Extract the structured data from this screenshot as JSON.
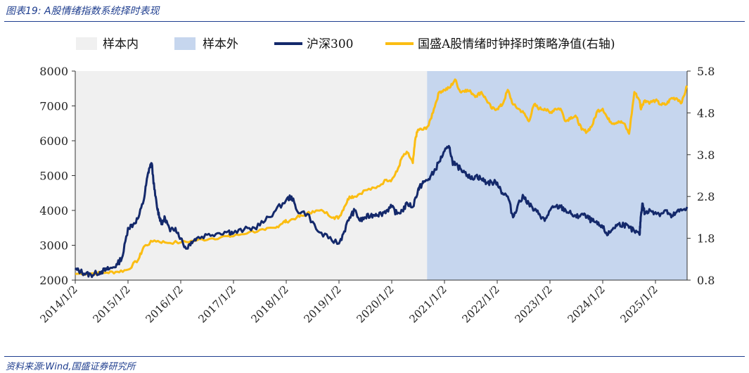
{
  "figure": {
    "title": "图表19:  A股情绪指数系统择时表现",
    "source": "资料来源:Wind,国盛证券研究所"
  },
  "colors": {
    "in_sample": "#f0f0f0",
    "out_sample": "#c6d6ee",
    "hs300": "#14296b",
    "strategy": "#fbbd13",
    "accent": "#1f3e8f"
  },
  "chart_data": {
    "type": "line",
    "title": "",
    "xlabel": "",
    "ylabel": "",
    "legend": [
      "样本内",
      "样本外",
      "沪深300",
      "国盛A股情绪时钟择时策略净值(右轴)"
    ],
    "legend_position": "top",
    "x_ticks": [
      "2014/1/2",
      "2015/1/2",
      "2016/1/2",
      "2017/1/2",
      "2018/1/2",
      "2019/1/2",
      "2020/1/2",
      "2021/1/2",
      "2022/1/2",
      "2023/1/2",
      "2024/1/2",
      "2025/1/2"
    ],
    "x_range": [
      2014.0,
      2025.6
    ],
    "ylim_left": [
      2000,
      8000
    ],
    "ylim_right": [
      0.8,
      5.8
    ],
    "y_ticks_left": [
      "2000",
      "3000",
      "4000",
      "5000",
      "6000",
      "7000",
      "8000"
    ],
    "y_ticks_right": [
      "0.8",
      "1.8",
      "2.8",
      "3.8",
      "4.8",
      "5.8"
    ],
    "shaded_regions": [
      {
        "name": "样本内",
        "from": 2014.0,
        "to": 2020.67
      },
      {
        "name": "样本外",
        "from": 2020.67,
        "to": 2025.6
      }
    ],
    "series": [
      {
        "name": "沪深300",
        "axis": "left",
        "x": [
          2014.0,
          2014.1,
          2014.2,
          2014.3,
          2014.4,
          2014.5,
          2014.6,
          2014.7,
          2014.8,
          2014.9,
          2015.0,
          2015.1,
          2015.2,
          2015.3,
          2015.35,
          2015.4,
          2015.45,
          2015.5,
          2015.55,
          2015.6,
          2015.65,
          2015.7,
          2015.8,
          2015.9,
          2016.0,
          2016.1,
          2016.2,
          2016.3,
          2016.5,
          2016.7,
          2016.9,
          2017.0,
          2017.2,
          2017.4,
          2017.6,
          2017.8,
          2018.0,
          2018.1,
          2018.2,
          2018.4,
          2018.6,
          2018.8,
          2019.0,
          2019.1,
          2019.2,
          2019.3,
          2019.4,
          2019.5,
          2019.6,
          2019.7,
          2019.8,
          2019.9,
          2020.0,
          2020.1,
          2020.2,
          2020.3,
          2020.4,
          2020.5,
          2020.55,
          2020.6,
          2020.7,
          2020.8,
          2020.9,
          2021.0,
          2021.1,
          2021.15,
          2021.2,
          2021.3,
          2021.4,
          2021.5,
          2021.6,
          2021.7,
          2021.8,
          2021.9,
          2022.0,
          2022.1,
          2022.2,
          2022.3,
          2022.4,
          2022.5,
          2022.6,
          2022.7,
          2022.8,
          2022.9,
          2023.0,
          2023.1,
          2023.2,
          2023.3,
          2023.4,
          2023.5,
          2023.6,
          2023.7,
          2023.8,
          2023.9,
          2024.0,
          2024.1,
          2024.2,
          2024.3,
          2024.4,
          2024.5,
          2024.6,
          2024.7,
          2024.72,
          2024.75,
          2024.8,
          2024.9,
          2025.0,
          2025.1,
          2025.2,
          2025.3,
          2025.4,
          2025.5,
          2025.6
        ],
        "values": [
          2300,
          2250,
          2180,
          2150,
          2200,
          2250,
          2300,
          2350,
          2450,
          2700,
          3500,
          3600,
          3800,
          4300,
          4800,
          5200,
          5350,
          4600,
          4100,
          3800,
          3600,
          3800,
          3400,
          3500,
          3200,
          2900,
          3100,
          3200,
          3300,
          3350,
          3400,
          3350,
          3450,
          3500,
          3700,
          4000,
          4300,
          4400,
          4000,
          3900,
          3400,
          3200,
          3050,
          3400,
          3800,
          4000,
          3700,
          3800,
          3850,
          3900,
          3900,
          4000,
          4100,
          3900,
          4000,
          4200,
          4100,
          4600,
          4700,
          4800,
          4900,
          5100,
          5400,
          5700,
          5800,
          5400,
          5300,
          5200,
          5100,
          4900,
          5000,
          4900,
          4800,
          4800,
          4800,
          4500,
          4400,
          3800,
          4200,
          4400,
          4200,
          4000,
          3900,
          3700,
          4000,
          4100,
          4100,
          4000,
          3900,
          3800,
          3900,
          3800,
          3700,
          3600,
          3500,
          3300,
          3500,
          3600,
          3600,
          3500,
          3400,
          3300,
          3800,
          4200,
          3900,
          4000,
          3950,
          3900,
          4000,
          3800,
          3950,
          4000,
          4100
        ]
      },
      {
        "name": "国盛A股情绪时钟择时策略净值(右轴)",
        "axis": "right",
        "x": [
          2014.0,
          2014.3,
          2014.6,
          2014.8,
          2015.0,
          2015.2,
          2015.3,
          2015.5,
          2015.7,
          2016.0,
          2016.3,
          2016.6,
          2016.9,
          2017.0,
          2017.3,
          2017.6,
          2017.8,
          2017.95,
          2018.0,
          2018.2,
          2018.35,
          2018.5,
          2018.7,
          2018.9,
          2019.0,
          2019.1,
          2019.2,
          2019.3,
          2019.5,
          2019.7,
          2019.9,
          2020.0,
          2020.1,
          2020.2,
          2020.3,
          2020.4,
          2020.45,
          2020.5,
          2020.6,
          2020.7,
          2020.8,
          2020.9,
          2021.0,
          2021.1,
          2021.2,
          2021.3,
          2021.4,
          2021.5,
          2021.6,
          2021.7,
          2021.8,
          2021.9,
          2022.0,
          2022.1,
          2022.2,
          2022.3,
          2022.4,
          2022.5,
          2022.6,
          2022.7,
          2022.8,
          2022.9,
          2023.0,
          2023.1,
          2023.2,
          2023.3,
          2023.4,
          2023.5,
          2023.6,
          2023.7,
          2023.8,
          2023.9,
          2024.0,
          2024.1,
          2024.2,
          2024.3,
          2024.4,
          2024.5,
          2024.6,
          2024.7,
          2024.72,
          2024.75,
          2024.8,
          2024.9,
          2025.0,
          2025.1,
          2025.2,
          2025.3,
          2025.4,
          2025.5,
          2025.6
        ],
        "values": [
          0.95,
          0.96,
          0.98,
          1.0,
          1.05,
          1.3,
          1.6,
          1.75,
          1.7,
          1.7,
          1.75,
          1.8,
          1.85,
          1.85,
          1.95,
          2.0,
          2.05,
          2.2,
          2.2,
          2.3,
          2.35,
          2.45,
          2.45,
          2.3,
          2.3,
          2.55,
          2.8,
          2.8,
          2.95,
          3.0,
          3.2,
          3.2,
          3.4,
          3.75,
          3.85,
          3.6,
          4.2,
          4.4,
          4.4,
          4.5,
          4.9,
          5.3,
          5.35,
          5.4,
          5.6,
          5.3,
          5.35,
          5.3,
          5.2,
          5.3,
          5.1,
          4.9,
          4.9,
          5.0,
          5.35,
          5.0,
          4.9,
          4.8,
          4.6,
          5.0,
          4.9,
          4.9,
          4.8,
          4.9,
          4.9,
          4.6,
          4.7,
          4.7,
          4.4,
          4.35,
          4.5,
          4.85,
          4.9,
          4.65,
          4.55,
          4.6,
          4.55,
          4.3,
          5.3,
          5.1,
          4.9,
          5.0,
          5.1,
          5.05,
          5.1,
          5.0,
          5.0,
          5.15,
          5.15,
          5.05,
          5.45
        ]
      }
    ]
  }
}
